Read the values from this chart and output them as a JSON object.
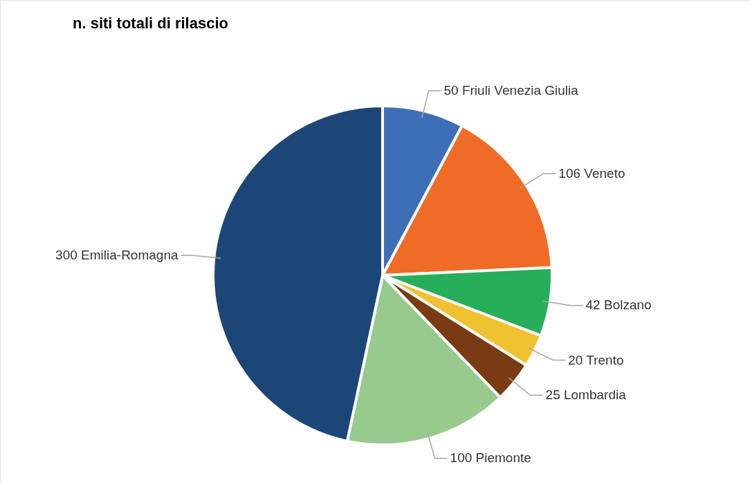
{
  "chart_data": {
    "type": "pie",
    "title": "n. siti totali di rilascio",
    "categories": [
      "50 Friuli Venezia Giulia",
      "106  Veneto",
      "42 Bolzano",
      "20 Trento",
      "25 Lombardia",
      "100 Piemonte",
      "300 Emilia-Romagna"
    ],
    "values": [
      50,
      106,
      42,
      20,
      25,
      100,
      300
    ],
    "colors": [
      "#3d6fb6",
      "#f06c26",
      "#27ae5a",
      "#f0c231",
      "#7a3b14",
      "#98c98d",
      "#1c4677"
    ]
  }
}
